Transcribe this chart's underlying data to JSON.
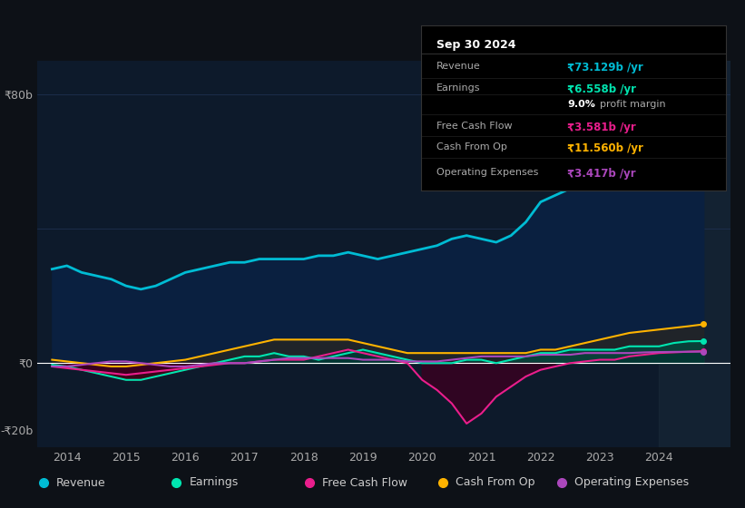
{
  "bg_color": "#0d1117",
  "chart_bg": "#0d1a2b",
  "y_label_80": "₹80b",
  "y_label_0": "₹0",
  "y_label_neg20": "-₹20b",
  "x_ticks": [
    "2014",
    "2015",
    "2016",
    "2017",
    "2018",
    "2019",
    "2020",
    "2021",
    "2022",
    "2023",
    "2024"
  ],
  "info_box": {
    "date": "Sep 30 2024",
    "rows": [
      {
        "label": "Revenue",
        "value": "₹73.129b /yr",
        "value_color": "#00bcd4"
      },
      {
        "label": "Earnings",
        "value": "₹6.558b /yr",
        "value_color": "#00e5b0"
      },
      {
        "label": "",
        "value": "9.0% profit margin",
        "value_color": "#ffffff"
      },
      {
        "label": "Free Cash Flow",
        "value": "₹3.581b /yr",
        "value_color": "#e91e8c"
      },
      {
        "label": "Cash From Op",
        "value": "₹11.560b /yr",
        "value_color": "#ffb300"
      },
      {
        "label": "Operating Expenses",
        "value": "₹3.417b /yr",
        "value_color": "#ab47bc"
      }
    ]
  },
  "legend": [
    {
      "label": "Revenue",
      "color": "#00bcd4"
    },
    {
      "label": "Earnings",
      "color": "#00e5b0"
    },
    {
      "label": "Free Cash Flow",
      "color": "#e91e8c"
    },
    {
      "label": "Cash From Op",
      "color": "#ffb300"
    },
    {
      "label": "Operating Expenses",
      "color": "#ab47bc"
    }
  ],
  "ylim": [
    -25,
    90
  ],
  "xlim": [
    2013.5,
    2025.2
  ],
  "revenue": {
    "x": [
      2013.75,
      2014.0,
      2014.25,
      2014.5,
      2014.75,
      2015.0,
      2015.25,
      2015.5,
      2015.75,
      2016.0,
      2016.25,
      2016.5,
      2016.75,
      2017.0,
      2017.25,
      2017.5,
      2017.75,
      2018.0,
      2018.25,
      2018.5,
      2018.75,
      2019.0,
      2019.25,
      2019.5,
      2019.75,
      2020.0,
      2020.25,
      2020.5,
      2020.75,
      2021.0,
      2021.25,
      2021.5,
      2021.75,
      2022.0,
      2022.25,
      2022.5,
      2022.75,
      2023.0,
      2023.25,
      2023.5,
      2023.75,
      2024.0,
      2024.25,
      2024.5,
      2024.75
    ],
    "y": [
      28,
      29,
      27,
      26,
      25,
      23,
      22,
      23,
      25,
      27,
      28,
      29,
      30,
      30,
      31,
      31,
      31,
      31,
      32,
      32,
      33,
      32,
      31,
      32,
      33,
      34,
      35,
      37,
      38,
      37,
      36,
      38,
      42,
      48,
      50,
      52,
      54,
      55,
      58,
      60,
      63,
      66,
      68,
      70,
      73
    ]
  },
  "earnings": {
    "x": [
      2013.75,
      2014.0,
      2014.25,
      2014.5,
      2014.75,
      2015.0,
      2015.25,
      2015.5,
      2015.75,
      2016.0,
      2016.25,
      2016.5,
      2016.75,
      2017.0,
      2017.25,
      2017.5,
      2017.75,
      2018.0,
      2018.25,
      2018.5,
      2018.75,
      2019.0,
      2019.25,
      2019.5,
      2019.75,
      2020.0,
      2020.25,
      2020.5,
      2020.75,
      2021.0,
      2021.25,
      2021.5,
      2021.75,
      2022.0,
      2022.25,
      2022.5,
      2022.75,
      2023.0,
      2023.25,
      2023.5,
      2023.75,
      2024.0,
      2024.25,
      2024.5,
      2024.75
    ],
    "y": [
      -0.5,
      -1,
      -2,
      -3,
      -4,
      -5,
      -5,
      -4,
      -3,
      -2,
      -1,
      0,
      1,
      2,
      2,
      3,
      2,
      2,
      1,
      2,
      3,
      4,
      3,
      2,
      1,
      0,
      0,
      0,
      1,
      1,
      0,
      1,
      2,
      3,
      3,
      4,
      4,
      4,
      4,
      5,
      5,
      5,
      6,
      6.5,
      6.558
    ]
  },
  "free_cash_flow": {
    "x": [
      2013.75,
      2014.0,
      2014.25,
      2014.5,
      2014.75,
      2015.0,
      2015.25,
      2015.5,
      2015.75,
      2016.0,
      2016.25,
      2016.5,
      2016.75,
      2017.0,
      2017.25,
      2017.5,
      2017.75,
      2018.0,
      2018.25,
      2018.5,
      2018.75,
      2019.0,
      2019.25,
      2019.5,
      2019.75,
      2020.0,
      2020.25,
      2020.5,
      2020.75,
      2021.0,
      2021.25,
      2021.5,
      2021.75,
      2022.0,
      2022.25,
      2022.5,
      2022.75,
      2023.0,
      2023.25,
      2023.5,
      2023.75,
      2024.0,
      2024.25,
      2024.5,
      2024.75
    ],
    "y": [
      -1,
      -1.5,
      -2,
      -2.5,
      -3,
      -3.5,
      -3,
      -2.5,
      -2,
      -1.5,
      -1,
      -0.5,
      0,
      0,
      0.5,
      1,
      1,
      1,
      2,
      3,
      4,
      3,
      2,
      1,
      0,
      -5,
      -8,
      -12,
      -18,
      -15,
      -10,
      -7,
      -4,
      -2,
      -1,
      0,
      0.5,
      1,
      1,
      2,
      2.5,
      3,
      3.2,
      3.4,
      3.581
    ]
  },
  "cash_from_op": {
    "x": [
      2013.75,
      2014.0,
      2014.25,
      2014.5,
      2014.75,
      2015.0,
      2015.25,
      2015.5,
      2015.75,
      2016.0,
      2016.25,
      2016.5,
      2016.75,
      2017.0,
      2017.25,
      2017.5,
      2017.75,
      2018.0,
      2018.25,
      2018.5,
      2018.75,
      2019.0,
      2019.25,
      2019.5,
      2019.75,
      2020.0,
      2020.25,
      2020.5,
      2020.75,
      2021.0,
      2021.25,
      2021.5,
      2021.75,
      2022.0,
      2022.25,
      2022.5,
      2022.75,
      2023.0,
      2023.25,
      2023.5,
      2023.75,
      2024.0,
      2024.25,
      2024.5,
      2024.75
    ],
    "y": [
      1,
      0.5,
      0,
      -0.5,
      -1,
      -1,
      -0.5,
      0,
      0.5,
      1,
      2,
      3,
      4,
      5,
      6,
      7,
      7,
      7,
      7,
      7,
      7,
      6,
      5,
      4,
      3,
      3,
      3,
      3,
      3,
      3,
      3,
      3,
      3,
      4,
      4,
      5,
      6,
      7,
      8,
      9,
      9.5,
      10,
      10.5,
      11,
      11.56
    ]
  },
  "operating_expenses": {
    "x": [
      2013.75,
      2014.0,
      2014.25,
      2014.5,
      2014.75,
      2015.0,
      2015.25,
      2015.5,
      2015.75,
      2016.0,
      2016.25,
      2016.5,
      2016.75,
      2017.0,
      2017.25,
      2017.5,
      2017.75,
      2018.0,
      2018.25,
      2018.5,
      2018.75,
      2019.0,
      2019.25,
      2019.5,
      2019.75,
      2020.0,
      2020.25,
      2020.5,
      2020.75,
      2021.0,
      2021.25,
      2021.5,
      2021.75,
      2022.0,
      2022.25,
      2022.5,
      2022.75,
      2023.0,
      2023.25,
      2023.5,
      2023.75,
      2024.0,
      2024.25,
      2024.5,
      2024.75
    ],
    "y": [
      -1,
      -1,
      -0.5,
      0,
      0.5,
      0.5,
      0,
      -0.5,
      -1,
      -1,
      -0.5,
      0,
      0,
      0,
      0.5,
      1,
      1.5,
      1.5,
      1.5,
      1.5,
      1.5,
      1,
      1,
      1,
      0.5,
      0.5,
      0.5,
      1,
      1.5,
      2,
      2,
      2,
      2,
      2.5,
      2.5,
      2.5,
      3,
      3,
      3,
      3,
      3.2,
      3.3,
      3.35,
      3.4,
      3.417
    ]
  }
}
